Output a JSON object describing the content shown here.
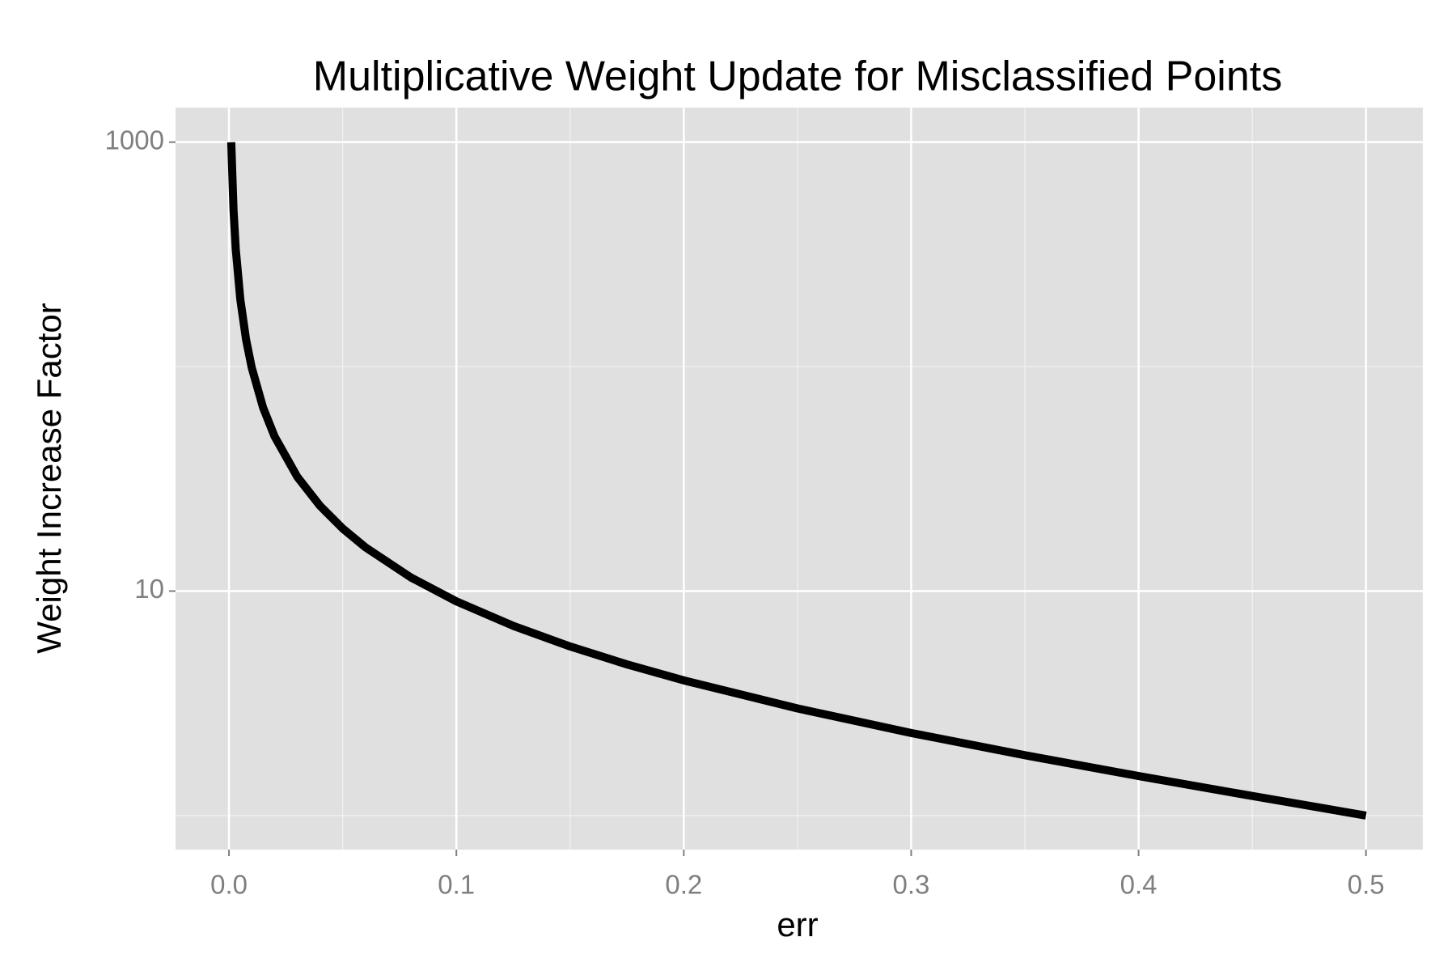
{
  "chart_data": {
    "type": "line",
    "title": "Multiplicative Weight Update for Misclassified Points",
    "x_label": "err",
    "y_label": "Weight Increase Factor",
    "x": [
      0.001,
      0.002,
      0.003,
      0.005,
      0.0075,
      0.01,
      0.015,
      0.02,
      0.03,
      0.04,
      0.05,
      0.06,
      0.08,
      0.1,
      0.125,
      0.15,
      0.175,
      0.2,
      0.25,
      0.3,
      0.35,
      0.4,
      0.45,
      0.5
    ],
    "series": [
      {
        "color": "#000000",
        "values": [
          999,
          499,
          332.3,
          199,
          132.3,
          99,
          65.67,
          49,
          32.33,
          24,
          19,
          15.67,
          11.5,
          9,
          7,
          5.667,
          4.714,
          4,
          3,
          2.333,
          1.857,
          1.5,
          1.222,
          1
        ]
      }
    ],
    "xlim": [
      -0.0235,
      0.525
    ],
    "ylim": [
      0.705,
      1425
    ],
    "xticks": [
      {
        "value": 0,
        "label": "0.0"
      },
      0.1,
      0.2,
      0.3,
      0.4,
      0.5
    ],
    "yticks": [
      10,
      1000
    ],
    "xminor": [
      0.05,
      0.15,
      0.25,
      0.35,
      0.45
    ],
    "yminor": [
      1,
      100
    ],
    "ylog": true,
    "grid": true
  }
}
